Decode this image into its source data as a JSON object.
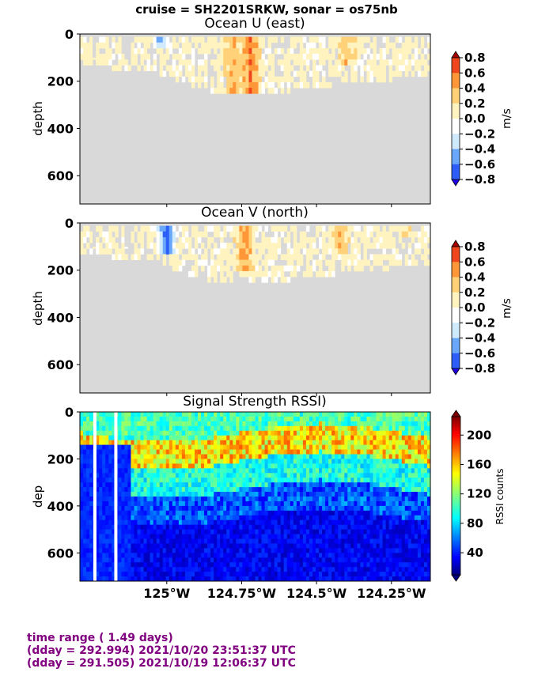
{
  "suptitle": "cruise = SH2201SRKW,  sonar = os75nb",
  "footer": {
    "line1": "time range ( 1.49 days)",
    "line2": "(dday = 292.994) 2021/10/20 23:51:37 UTC",
    "line3": "(dday = 291.505) 2021/10/19 12:06:37 UTC"
  },
  "chart_data": [
    {
      "type": "heatmap",
      "title": "Ocean U (east)",
      "ylabel": "depth",
      "ylim": [
        720,
        0
      ],
      "xlim": [
        -125.29,
        -124.12
      ],
      "yticks": [
        0,
        200,
        400,
        600
      ],
      "colorbar": {
        "label": "m/s",
        "range": [
          -0.8,
          0.8
        ],
        "ticks": [
          "0.8",
          "0.6",
          "0.4",
          "0.2",
          "0.0",
          "−0.2",
          "−0.4",
          "−0.6",
          "−0.8"
        ],
        "extend": "both"
      },
      "seafloor_profile": [
        [
          -125.29,
          130
        ],
        [
          -125.2,
          130
        ],
        [
          -125.12,
          140
        ],
        [
          -125.05,
          150
        ],
        [
          -125.0,
          160
        ],
        [
          -124.95,
          190
        ],
        [
          -124.9,
          210
        ],
        [
          -124.85,
          240
        ],
        [
          -124.8,
          245
        ],
        [
          -124.7,
          245
        ],
        [
          -124.6,
          230
        ],
        [
          -124.5,
          210
        ],
        [
          -124.4,
          200
        ],
        [
          -124.3,
          185
        ],
        [
          -124.2,
          175
        ],
        [
          -124.12,
          160
        ]
      ],
      "features": [
        {
          "lon": -124.72,
          "value": 0.55,
          "depth_to": 240
        },
        {
          "lon": -124.78,
          "value": 0.4,
          "depth_to": 240
        },
        {
          "lon": -125.02,
          "value": -0.5,
          "depth_to": 60
        },
        {
          "lon": -124.4,
          "value": 0.3,
          "depth_to": 120
        }
      ]
    },
    {
      "type": "heatmap",
      "title": "Ocean V (north)",
      "ylabel": "depth",
      "ylim": [
        720,
        0
      ],
      "xlim": [
        -125.29,
        -124.12
      ],
      "yticks": [
        0,
        200,
        400,
        600
      ],
      "colorbar": {
        "label": "m/s",
        "range": [
          -0.8,
          0.8
        ],
        "ticks": [
          "0.8",
          "0.6",
          "0.4",
          "0.2",
          "0.0",
          "−0.2",
          "−0.4",
          "−0.6",
          "−0.8"
        ],
        "extend": "both"
      },
      "seafloor_profile": [
        [
          -125.29,
          120
        ],
        [
          -125.2,
          130
        ],
        [
          -125.12,
          140
        ],
        [
          -125.05,
          150
        ],
        [
          -125.0,
          170
        ],
        [
          -124.95,
          200
        ],
        [
          -124.9,
          220
        ],
        [
          -124.85,
          240
        ],
        [
          -124.8,
          245
        ],
        [
          -124.7,
          245
        ],
        [
          -124.6,
          230
        ],
        [
          -124.5,
          210
        ],
        [
          -124.4,
          200
        ],
        [
          -124.3,
          185
        ],
        [
          -124.2,
          175
        ],
        [
          -124.12,
          160
        ]
      ],
      "features": [
        {
          "lon": -124.74,
          "value": 0.45,
          "depth_to": 200
        },
        {
          "lon": -125.0,
          "value": -0.8,
          "depth_to": 120
        },
        {
          "lon": -124.42,
          "value": 0.3,
          "depth_to": 120
        },
        {
          "lon": -124.2,
          "value": 0.25,
          "depth_to": 60
        }
      ]
    },
    {
      "type": "heatmap",
      "title": "Signal Strength RSSI)",
      "ylabel": "dep",
      "ylim": [
        720,
        0
      ],
      "xlim": [
        -125.29,
        -124.12
      ],
      "yticks": [
        0,
        200,
        400,
        600
      ],
      "xticks": [
        {
          "lon": -125.0,
          "label": "125°W"
        },
        {
          "lon": -124.75,
          "label": "124.75°W"
        },
        {
          "lon": -124.5,
          "label": "124.5°W"
        },
        {
          "lon": -124.25,
          "label": "124.25°W"
        }
      ],
      "colorbar": {
        "label": "RSSI counts",
        "range": [
          10,
          225
        ],
        "ticks": [
          "200",
          "160",
          "120",
          "80",
          "40"
        ],
        "tick_values": [
          200,
          160,
          120,
          80,
          40
        ],
        "extend": "both"
      },
      "gaps_lon": [
        -125.24,
        -125.17
      ],
      "layers": [
        {
          "depth": [
            0,
            80
          ],
          "value": 110
        },
        {
          "depth": [
            80,
            200
          ],
          "value": 160
        },
        {
          "depth": [
            200,
            400
          ],
          "value": 90
        },
        {
          "depth": [
            400,
            720
          ],
          "value": 40
        }
      ]
    }
  ]
}
